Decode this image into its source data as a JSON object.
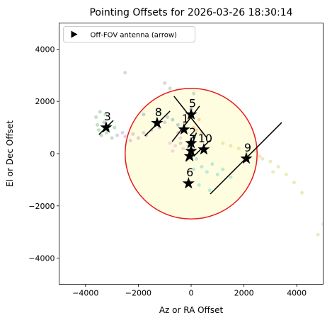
{
  "chart_data": {
    "type": "scatter",
    "title": "Pointing Offsets for 2026-03-26 18:30:14",
    "xlabel": "Az or RA Offset",
    "ylabel": "El or Dec Offset",
    "xlim": [
      -5000,
      5000
    ],
    "ylim": [
      -5000,
      5000
    ],
    "xticks": [
      {
        "value": -4000,
        "label": "−4000"
      },
      {
        "value": -2000,
        "label": "−2000"
      },
      0,
      2000,
      4000
    ],
    "yticks": [
      {
        "value": -4000,
        "label": "−4000"
      },
      {
        "value": -2000,
        "label": "−2000"
      },
      0,
      2000,
      4000
    ],
    "legend": {
      "label": "Off-FOV antenna (arrow)",
      "position": "upper left"
    },
    "circle": {
      "r": 2500,
      "edge": "#e8191c",
      "fill": "#fffde0"
    },
    "clouds": [
      {
        "color": "#2ca02c",
        "x": [
          -3600,
          -3500,
          -3400,
          -3300,
          -3200,
          -3100,
          -3000,
          -3450,
          -3250,
          -3150,
          -2900,
          -3550
        ],
        "y": [
          1400,
          900,
          700,
          1200,
          800,
          1100,
          600,
          1600,
          1500,
          900,
          1000,
          1100
        ]
      },
      {
        "color": "#9467bd",
        "x": [
          -2800,
          -2500,
          -2200,
          -2000,
          -1800,
          -1500,
          -1200,
          -1000,
          -2600,
          -2300,
          -1700,
          -1300
        ],
        "y": [
          700,
          650,
          750,
          600,
          800,
          900,
          1000,
          1200,
          800,
          500,
          700,
          1100
        ]
      },
      {
        "color": "#bcbd22",
        "x": [
          1200,
          1500,
          1800,
          2100,
          2400,
          2700,
          3000,
          3300,
          3600,
          3900,
          4200,
          4800,
          5000,
          2600,
          3100
        ],
        "y": [
          400,
          300,
          200,
          0,
          100,
          -200,
          -300,
          -500,
          -800,
          -1100,
          -1500,
          -3100,
          -2700,
          -100,
          -700
        ]
      },
      {
        "color": "#17becf",
        "x": [
          200,
          400,
          600,
          800,
          1000,
          1200,
          1500,
          300,
          700,
          100,
          -100
        ],
        "y": [
          -200,
          -500,
          -700,
          -400,
          -800,
          -600,
          -900,
          -1200,
          -1400,
          -600,
          300
        ]
      },
      {
        "color": "#e377c2",
        "x": [
          -800,
          -600,
          -400,
          -700,
          -500,
          -300
        ],
        "y": [
          400,
          300,
          600,
          100,
          800,
          200
        ]
      },
      {
        "color": "#ff7f0e",
        "x": [
          -200,
          100,
          200,
          300,
          400
        ],
        "y": [
          1200,
          1000,
          900,
          1300,
          800
        ]
      },
      {
        "color": "#1f77b4",
        "x": [
          -1800,
          -1200,
          -900,
          -700,
          -500,
          -300,
          0
        ],
        "y": [
          1500,
          1600,
          1400,
          1300,
          1100,
          900,
          1700
        ]
      },
      {
        "color": "#7f7f7f",
        "x": [
          -2500,
          -1000,
          -800,
          100,
          -400
        ],
        "y": [
          3100,
          2700,
          2500,
          2300,
          400
        ]
      }
    ],
    "segments": [
      {
        "x1": 724,
        "y1": -1545,
        "x2": 3430,
        "y2": 1190
      },
      {
        "x1": -1750,
        "y1": 680,
        "x2": -800,
        "y2": 1630
      },
      {
        "x1": -650,
        "y1": 2200,
        "x2": 600,
        "y2": 600
      },
      {
        "x1": -720,
        "y1": 460,
        "x2": 320,
        "y2": 1820
      },
      {
        "x1": -3490,
        "y1": 730,
        "x2": -2950,
        "y2": 1270
      },
      {
        "x1": 100,
        "y1": -100,
        "x2": 700,
        "y2": 500
      },
      {
        "x1": -200,
        "y1": -300,
        "x2": 200,
        "y2": 800
      }
    ],
    "antennas": [
      {
        "label": "1",
        "x": -270,
        "y": 925
      },
      {
        "label": "2",
        "x": 0,
        "y": 400
      },
      {
        "label": "3",
        "x": -3220,
        "y": 1000
      },
      {
        "label": "4",
        "x": 0,
        "y": 100
      },
      {
        "label": "5",
        "x": 0,
        "y": 1500
      },
      {
        "label": "6",
        "x": -100,
        "y": -1140
      },
      {
        "label": "7",
        "x": -50,
        "y": -100
      },
      {
        "label": "8",
        "x": -1290,
        "y": 1170
      },
      {
        "label": "9",
        "x": 2090,
        "y": -190
      },
      {
        "label": "10",
        "x": 480,
        "y": 160
      }
    ]
  }
}
